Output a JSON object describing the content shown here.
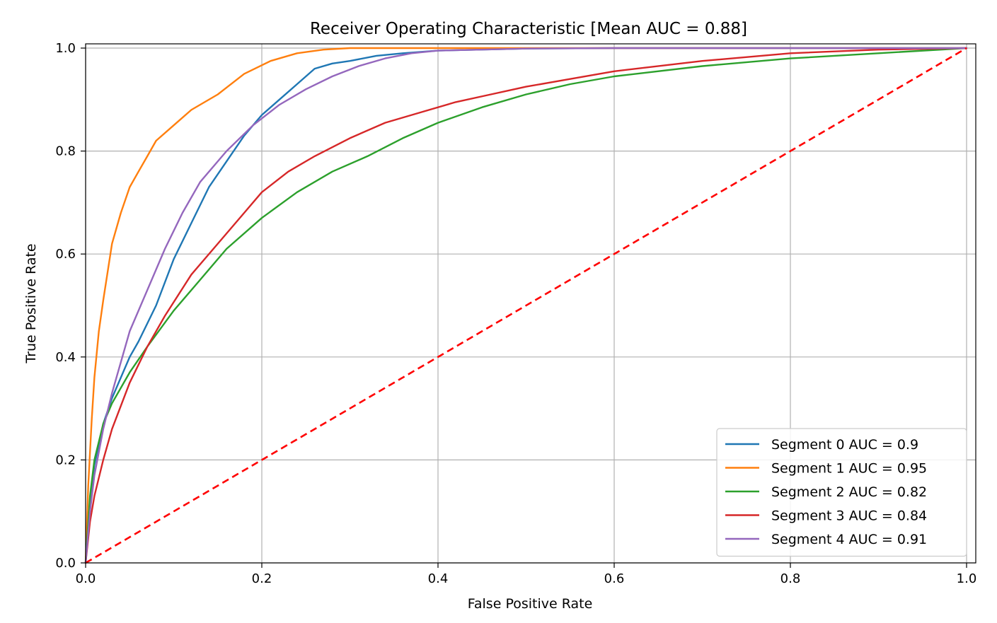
{
  "chart_data": {
    "type": "line",
    "title": "Receiver Operating Characteristic [Mean AUC = 0.88]",
    "xlabel": "False Positive Rate",
    "ylabel": "True Positive Rate",
    "xlim": [
      0,
      1
    ],
    "ylim": [
      0,
      1
    ],
    "xticks": [
      "0.0",
      "0.2",
      "0.4",
      "0.6",
      "0.8",
      "1.0"
    ],
    "yticks": [
      "0.0",
      "0.2",
      "0.4",
      "0.6",
      "0.8",
      "1.0"
    ],
    "grid": true,
    "legend_position": "lower right",
    "series": [
      {
        "name": "Segment 0  AUC = 0.9",
        "color": "#1f77b4",
        "x": [
          0,
          0.005,
          0.01,
          0.02,
          0.03,
          0.04,
          0.05,
          0.06,
          0.08,
          0.1,
          0.12,
          0.14,
          0.16,
          0.18,
          0.2,
          0.22,
          0.24,
          0.26,
          0.28,
          0.3,
          0.33,
          0.36,
          0.4,
          0.5,
          0.6,
          0.8,
          1.0
        ],
        "y": [
          0,
          0.12,
          0.19,
          0.27,
          0.32,
          0.36,
          0.4,
          0.43,
          0.5,
          0.59,
          0.66,
          0.73,
          0.78,
          0.83,
          0.87,
          0.9,
          0.93,
          0.96,
          0.97,
          0.975,
          0.985,
          0.99,
          0.995,
          0.999,
          1.0,
          1.0,
          1.0
        ]
      },
      {
        "name": "Segment 1  AUC = 0.95",
        "color": "#ff7f0e",
        "x": [
          0,
          0.003,
          0.007,
          0.01,
          0.015,
          0.02,
          0.03,
          0.04,
          0.05,
          0.06,
          0.07,
          0.08,
          0.1,
          0.12,
          0.15,
          0.18,
          0.21,
          0.24,
          0.27,
          0.3,
          0.4,
          0.6,
          0.8,
          1.0
        ],
        "y": [
          0,
          0.15,
          0.28,
          0.36,
          0.45,
          0.51,
          0.62,
          0.68,
          0.73,
          0.76,
          0.79,
          0.82,
          0.85,
          0.88,
          0.91,
          0.95,
          0.975,
          0.99,
          0.997,
          1.0,
          1.0,
          1.0,
          1.0,
          1.0
        ]
      },
      {
        "name": "Segment 2  AUC = 0.82",
        "color": "#2ca02c",
        "x": [
          0,
          0.005,
          0.01,
          0.02,
          0.03,
          0.05,
          0.07,
          0.1,
          0.13,
          0.16,
          0.2,
          0.24,
          0.28,
          0.32,
          0.36,
          0.4,
          0.45,
          0.5,
          0.55,
          0.6,
          0.7,
          0.8,
          0.9,
          1.0
        ],
        "y": [
          0,
          0.13,
          0.2,
          0.27,
          0.31,
          0.37,
          0.42,
          0.49,
          0.55,
          0.61,
          0.67,
          0.72,
          0.76,
          0.79,
          0.825,
          0.855,
          0.885,
          0.91,
          0.93,
          0.945,
          0.965,
          0.98,
          0.99,
          1.0
        ]
      },
      {
        "name": "Segment 3  AUC = 0.84",
        "color": "#d62728",
        "x": [
          0,
          0.005,
          0.01,
          0.02,
          0.03,
          0.05,
          0.07,
          0.09,
          0.12,
          0.15,
          0.18,
          0.2,
          0.23,
          0.26,
          0.3,
          0.34,
          0.38,
          0.42,
          0.46,
          0.5,
          0.55,
          0.6,
          0.7,
          0.8,
          0.9,
          1.0
        ],
        "y": [
          0,
          0.08,
          0.13,
          0.2,
          0.26,
          0.35,
          0.42,
          0.48,
          0.56,
          0.62,
          0.68,
          0.72,
          0.76,
          0.79,
          0.825,
          0.855,
          0.875,
          0.895,
          0.91,
          0.925,
          0.94,
          0.955,
          0.975,
          0.99,
          0.997,
          1.0
        ]
      },
      {
        "name": "Segment 4  AUC = 0.91",
        "color": "#9467bd",
        "x": [
          0,
          0.005,
          0.01,
          0.02,
          0.03,
          0.04,
          0.05,
          0.07,
          0.09,
          0.11,
          0.13,
          0.16,
          0.19,
          0.22,
          0.25,
          0.28,
          0.31,
          0.34,
          0.37,
          0.4,
          0.5,
          0.6,
          0.8,
          1.0
        ],
        "y": [
          0,
          0.1,
          0.17,
          0.26,
          0.33,
          0.39,
          0.45,
          0.53,
          0.61,
          0.68,
          0.74,
          0.8,
          0.85,
          0.89,
          0.92,
          0.945,
          0.965,
          0.98,
          0.99,
          0.995,
          0.999,
          1.0,
          1.0,
          1.0
        ]
      },
      {
        "name": "",
        "color": "#ff0000",
        "dashed": true,
        "x": [
          0,
          1
        ],
        "y": [
          0,
          1
        ]
      }
    ]
  }
}
